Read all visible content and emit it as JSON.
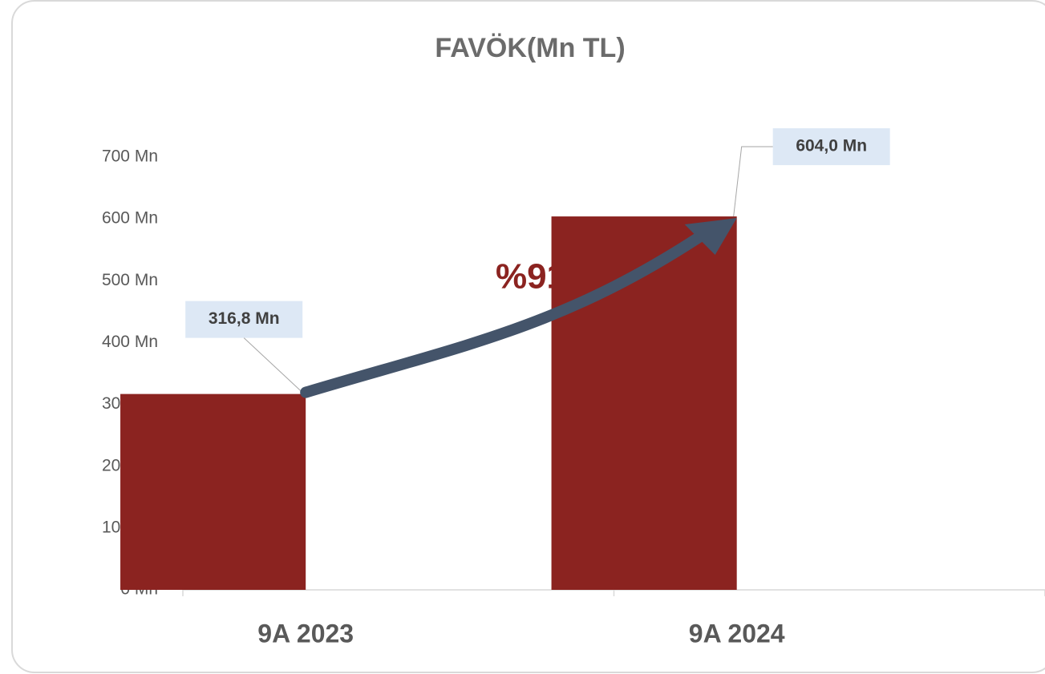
{
  "chart_data": {
    "type": "bar",
    "title": "FAVÖK(Mn TL)",
    "categories": [
      "9A 2023",
      "9A 2024"
    ],
    "values": [
      316.8,
      604.0
    ],
    "value_labels": [
      "316,8 Mn",
      "604,0 Mn"
    ],
    "color": "#8b2320",
    "annotation": "%91",
    "ylim": [
      0,
      700
    ],
    "yticks": [
      {
        "value": 0,
        "label": "0 Mn"
      },
      {
        "value": 100,
        "label": "100 Mn"
      },
      {
        "value": 200,
        "label": "200 Mn"
      },
      {
        "value": 300,
        "label": "300 Mn"
      },
      {
        "value": 400,
        "label": "400 Mn"
      },
      {
        "value": 500,
        "label": "500 Mn"
      },
      {
        "value": 600,
        "label": "600 Mn"
      },
      {
        "value": 700,
        "label": "700 Mn"
      }
    ],
    "grid": false
  }
}
